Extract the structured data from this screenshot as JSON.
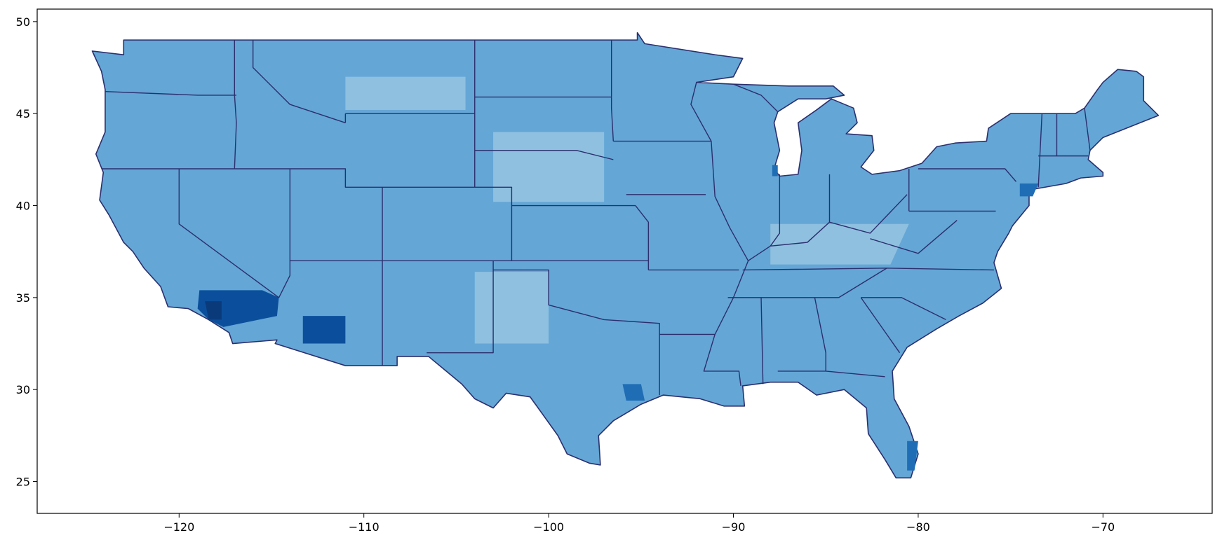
{
  "chart_data": {
    "type": "map",
    "xlim": [
      -127.68,
      -64.09
    ],
    "ylim": [
      23.27,
      50.68
    ],
    "xticks": [
      {
        "value": -120,
        "label": "−120"
      },
      {
        "value": -110,
        "label": "−110"
      },
      {
        "value": -100,
        "label": "−100"
      },
      {
        "value": -90,
        "label": "−90"
      },
      {
        "value": -80,
        "label": "−80"
      },
      {
        "value": -70,
        "label": "−70"
      }
    ],
    "yticks": [
      25,
      30,
      35,
      40,
      45,
      50
    ]
  }
}
